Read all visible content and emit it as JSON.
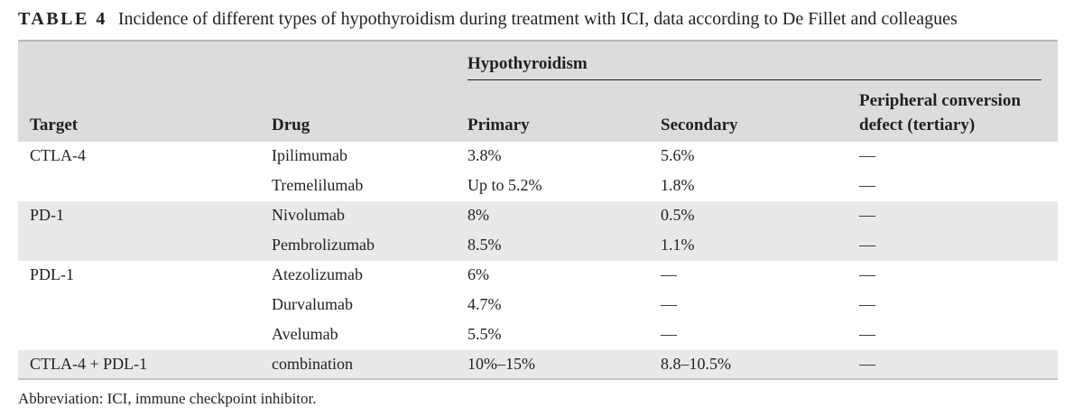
{
  "caption": {
    "label": "TABLE 4",
    "text": "Incidence of different types of hypothyroidism during treatment with ICI, data according to De Fillet and colleagues"
  },
  "header": {
    "group": "Hypothyroidism",
    "columns": {
      "target": "Target",
      "drug": "Drug",
      "primary": "Primary",
      "secondary": "Secondary",
      "peripheral_line1": "Peripheral conversion",
      "peripheral_line2": "defect (tertiary)"
    }
  },
  "rows": [
    {
      "target": "CTLA-4",
      "drug": "Ipilimumab",
      "primary": "3.8%",
      "secondary": "5.6%",
      "peripheral": "—"
    },
    {
      "target": "",
      "drug": "Tremelilumab",
      "primary": "Up to 5.2%",
      "secondary": "1.8%",
      "peripheral": "—"
    },
    {
      "target": "PD-1",
      "drug": "Nivolumab",
      "primary": "8%",
      "secondary": "0.5%",
      "peripheral": "—"
    },
    {
      "target": "",
      "drug": "Pembrolizumab",
      "primary": "8.5%",
      "secondary": "1.1%",
      "peripheral": "—"
    },
    {
      "target": "PDL-1",
      "drug": "Atezolizumab",
      "primary": "6%",
      "secondary": "—",
      "peripheral": "—"
    },
    {
      "target": "",
      "drug": "Durvalumab",
      "primary": "4.7%",
      "secondary": "—",
      "peripheral": "—"
    },
    {
      "target": "",
      "drug": "Avelumab",
      "primary": "5.5%",
      "secondary": "—",
      "peripheral": "—"
    },
    {
      "target": "CTLA-4 + PDL-1",
      "drug": "combination",
      "primary": "10%–15%",
      "secondary": "8.8–10.5%",
      "peripheral": "—"
    }
  ],
  "footnote": "Abbreviation: ICI, immune checkpoint inhibitor."
}
